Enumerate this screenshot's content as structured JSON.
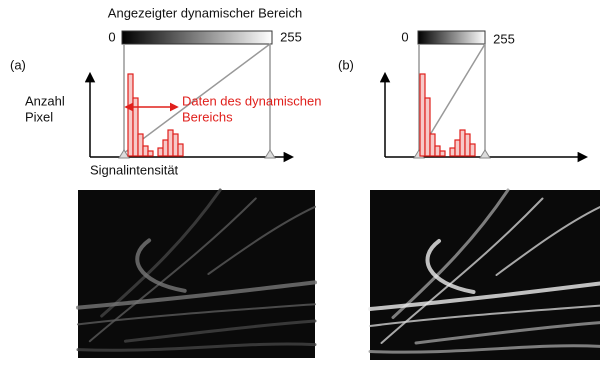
{
  "title": "Angezeigter dynamischer Bereich",
  "panel_a": {
    "label": "(a)",
    "range_min": "0",
    "range_max": "255"
  },
  "panel_b": {
    "label": "(b)",
    "range_min": "0",
    "range_max": "255"
  },
  "y_axis_label": [
    "Anzahl",
    "Pixel"
  ],
  "x_axis_label": "Signalintensität",
  "annotation": [
    "Daten des dynamischen",
    "Bereichs"
  ]
}
